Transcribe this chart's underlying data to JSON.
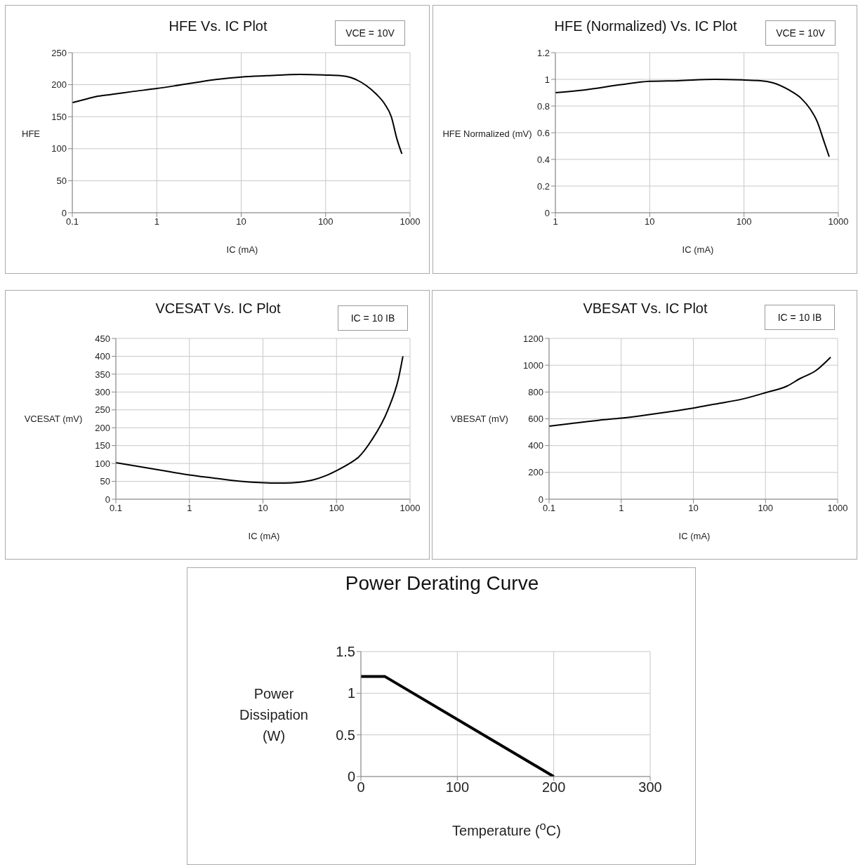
{
  "chart_data": [
    {
      "type": "line",
      "title": "HFE Vs. IC Plot",
      "xlabel": "IC (mA)",
      "ylabel": "HFE",
      "annotations": [
        "VCE = 10V"
      ],
      "log": "x",
      "grid": true,
      "xlim": [
        0.1,
        1000
      ],
      "xticks": [
        0.1,
        1,
        10,
        100,
        1000
      ],
      "ylim": [
        0,
        250
      ],
      "yticks": [
        0,
        50,
        100,
        150,
        200,
        250
      ],
      "x": [
        0.1,
        0.15,
        0.2,
        0.3,
        0.5,
        1,
        2,
        5,
        10,
        20,
        50,
        100,
        150,
        200,
        300,
        400,
        500,
        600,
        700,
        800
      ],
      "series": [
        {
          "color": "#000000",
          "values": [
            172,
            178,
            182,
            185,
            189,
            194,
            200,
            208,
            212,
            214,
            216,
            215,
            214,
            211,
            199,
            185,
            170,
            150,
            115,
            92
          ]
        }
      ]
    },
    {
      "type": "line",
      "title": "HFE (Normalized) Vs. IC Plot",
      "xlabel": "IC (mA)",
      "ylabel": "HFE Normalized (mV)",
      "annotations": [
        "VCE = 10V"
      ],
      "log": "x",
      "grid": true,
      "xlim": [
        1,
        1000
      ],
      "xticks": [
        1,
        10,
        100,
        1000
      ],
      "ylim": [
        0,
        1.2
      ],
      "yticks": [
        0,
        0.2,
        0.4,
        0.6,
        0.8,
        1,
        1.2
      ],
      "x": [
        1,
        2,
        5,
        10,
        20,
        50,
        100,
        150,
        200,
        300,
        400,
        500,
        600,
        700,
        800
      ],
      "series": [
        {
          "color": "#000000",
          "values": [
            0.9,
            0.92,
            0.96,
            0.985,
            0.99,
            1.0,
            0.995,
            0.99,
            0.975,
            0.92,
            0.86,
            0.78,
            0.68,
            0.54,
            0.42
          ]
        }
      ]
    },
    {
      "type": "line",
      "title": "VCESAT Vs. IC Plot",
      "xlabel": "IC (mA)",
      "ylabel": "VCESAT (mV)",
      "annotations": [
        "IC = 10 IB"
      ],
      "log": "x",
      "grid": true,
      "xlim": [
        0.1,
        1000
      ],
      "xticks": [
        0.1,
        1,
        10,
        100,
        1000
      ],
      "ylim": [
        0,
        450
      ],
      "yticks": [
        0,
        50,
        100,
        150,
        200,
        250,
        300,
        350,
        400,
        450
      ],
      "x": [
        0.1,
        0.2,
        0.5,
        1,
        2,
        5,
        10,
        15,
        20,
        30,
        50,
        70,
        100,
        150,
        200,
        300,
        500,
        700,
        800
      ],
      "series": [
        {
          "color": "#000000",
          "values": [
            102,
            92,
            78,
            68,
            60,
            50,
            46,
            45,
            45,
            47,
            55,
            65,
            80,
            100,
            118,
            165,
            250,
            340,
            400
          ]
        }
      ]
    },
    {
      "type": "line",
      "title": "VBESAT Vs. IC Plot",
      "xlabel": "IC (mA)",
      "ylabel": "VBESAT (mV)",
      "annotations": [
        "IC = 10 IB"
      ],
      "log": "x",
      "grid": true,
      "xlim": [
        0.1,
        1000
      ],
      "xticks": [
        0.1,
        1,
        10,
        100,
        1000
      ],
      "ylim": [
        0,
        1200
      ],
      "yticks": [
        0,
        200,
        400,
        600,
        800,
        1000,
        1200
      ],
      "x": [
        0.1,
        0.2,
        0.5,
        1,
        2,
        5,
        10,
        20,
        50,
        100,
        200,
        300,
        500,
        800
      ],
      "series": [
        {
          "color": "#000000",
          "values": [
            545,
            565,
            590,
            605,
            625,
            655,
            680,
            710,
            750,
            795,
            845,
            900,
            960,
            1060
          ]
        }
      ]
    },
    {
      "type": "line",
      "title": "Power Derating Curve",
      "xlabel": "Temperature ($^{o}$C)",
      "ylabel": "Power Dissipation (W)",
      "grid": true,
      "xlim": [
        0,
        300
      ],
      "xticks": [
        0,
        100,
        200,
        300
      ],
      "ylim": [
        0,
        1.5
      ],
      "yticks": [
        0,
        0.5,
        1,
        1.5
      ],
      "x": [
        0,
        25,
        200
      ],
      "series": [
        {
          "color": "#000000",
          "values": [
            1.2,
            1.2,
            0
          ]
        }
      ]
    }
  ]
}
